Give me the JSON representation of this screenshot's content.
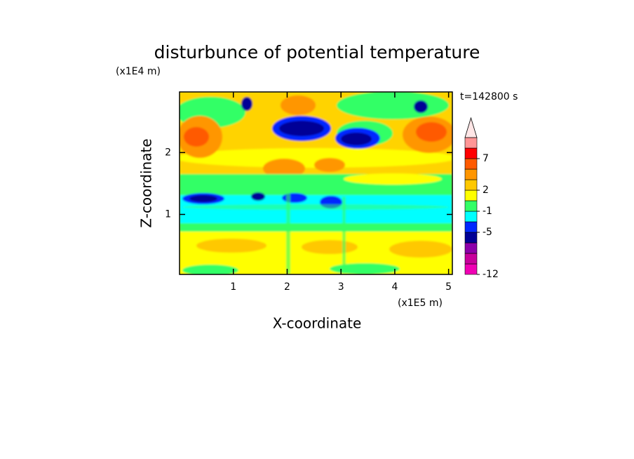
{
  "chart_data": {
    "type": "contour",
    "title": "disturbunce of potential temperature",
    "time_label": "t=142800 s",
    "x_label": "X-coordinate",
    "y_label": "Z-coordinate",
    "x_unit": "(x1E5 m)",
    "y_unit": "(x1E4 m)",
    "xlim": [
      0,
      5.07
    ],
    "ylim": [
      0.03,
      2.98
    ],
    "xticks": [
      1,
      2,
      3,
      4,
      5
    ],
    "yticks": [
      1,
      2
    ],
    "colorbar": {
      "levels": [
        -12,
        -10,
        -8,
        -6,
        -5,
        -3,
        -1,
        0,
        2,
        3,
        5,
        7,
        9,
        12
      ],
      "colors": [
        "#f000b4",
        "#c8009c",
        "#8c00aa",
        "#000096",
        "#0028ff",
        "#00ffff",
        "#33ff66",
        "#ffff00",
        "#ffc800",
        "#ff9600",
        "#ff5a00",
        "#ff0000",
        "#ff9696"
      ],
      "extend_color": "#ffe6e6",
      "ticks": [
        -12,
        -5,
        -1,
        2,
        7
      ]
    }
  }
}
